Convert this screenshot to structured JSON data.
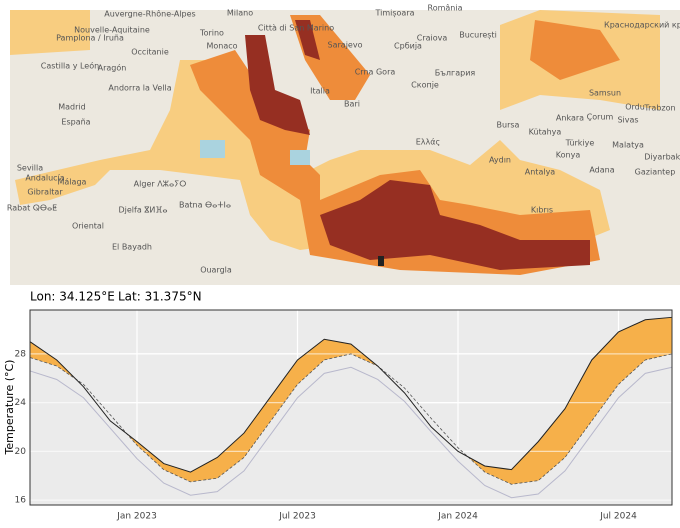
{
  "map": {
    "labels": [
      "Auvergne-Rhône-Alpes",
      "Nouvelle-Aquitaine",
      "Occitanie",
      "Pamplona / Iruña",
      "Castilla y León",
      "Aragón",
      "Andorra la Vella",
      "Madrid",
      "España",
      "Sevilla",
      "Andalucía",
      "Málaga",
      "Gibraltar",
      "Rabat ⵕⴱⴰⵟ",
      "Alger ⴷⵣⴰⵢⵔ",
      "Djelfa ⴵⵍⴼⴰ",
      "Batna ⴱⴰⵜⵏⴰ",
      "Oriental",
      "El Bayadh",
      "Ouargla",
      "Milano",
      "Torino",
      "Monaco",
      "Città di San Marino",
      "Italia",
      "Bari",
      "Sarajevo",
      "Србија",
      "Timișoara",
      "Craiova",
      "România",
      "București",
      "Crna Gora",
      "Скопје",
      "България",
      "Ελλάς",
      "Bursa",
      "Kütahya",
      "Ankara",
      "Çorum",
      "Sivas",
      "Samsun",
      "Ordu",
      "Trabzon",
      "Türkiye",
      "Konya",
      "Malatya",
      "Diyarbakır",
      "Aydın",
      "Antalya",
      "Adana",
      "Gaziantep",
      "Kıbrıs",
      "Краснодарский край"
    ],
    "coordinates": {
      "lon": "Lon: 34.125°E",
      "lat": "Lat: 31.375°N"
    }
  },
  "chart_data": {
    "type": "line",
    "ylabel": "Temperature (°C)",
    "x": [
      "2022-09",
      "2022-10",
      "2022-11",
      "2022-12",
      "2023-01",
      "2023-02",
      "2023-03",
      "2023-04",
      "2023-05",
      "2023-06",
      "2023-07",
      "2023-08",
      "2023-09",
      "2023-10",
      "2023-11",
      "2023-12",
      "2024-01",
      "2024-02",
      "2024-03",
      "2024-04",
      "2024-05",
      "2024-06",
      "2024-07",
      "2024-08",
      "2024-09"
    ],
    "xlim": [
      "2022-09",
      "2024-09"
    ],
    "xticks": [
      {
        "value": "2023-01",
        "label": "Jan 2023"
      },
      {
        "value": "2023-07",
        "label": "Jul 2023"
      },
      {
        "value": "2024-01",
        "label": "Jan 2024"
      },
      {
        "value": "2024-07",
        "label": "Jul 2024"
      }
    ],
    "ylim": [
      15.6,
      31.6
    ],
    "yticks": [
      16,
      20,
      24,
      28
    ],
    "grid": true,
    "heatwave_fill": "#f6b04a",
    "series": [
      {
        "color": "#222222",
        "dash": false,
        "values": [
          29.0,
          27.5,
          25.3,
          22.5,
          20.8,
          19.0,
          18.3,
          19.5,
          21.5,
          24.5,
          27.5,
          29.2,
          28.8,
          27.0,
          24.8,
          22.0,
          20.0,
          18.8,
          18.5,
          20.8,
          23.5,
          27.5,
          29.8,
          30.8,
          31.0
        ]
      },
      {
        "color": "#555555",
        "dash": true,
        "values": [
          27.7,
          27.0,
          25.5,
          23.0,
          20.5,
          18.5,
          17.5,
          17.8,
          19.5,
          22.5,
          25.5,
          27.5,
          28.0,
          27.0,
          25.2,
          22.7,
          20.3,
          18.3,
          17.3,
          17.6,
          19.5,
          22.5,
          25.5,
          27.5,
          28.0
        ]
      },
      {
        "color": "#b8b8cc",
        "dash": false,
        "values": [
          26.6,
          25.9,
          24.4,
          21.9,
          19.4,
          17.4,
          16.4,
          16.7,
          18.4,
          21.4,
          24.4,
          26.4,
          26.9,
          25.9,
          24.1,
          21.6,
          19.2,
          17.2,
          16.2,
          16.5,
          18.4,
          21.4,
          24.4,
          26.4,
          26.9
        ]
      }
    ]
  }
}
